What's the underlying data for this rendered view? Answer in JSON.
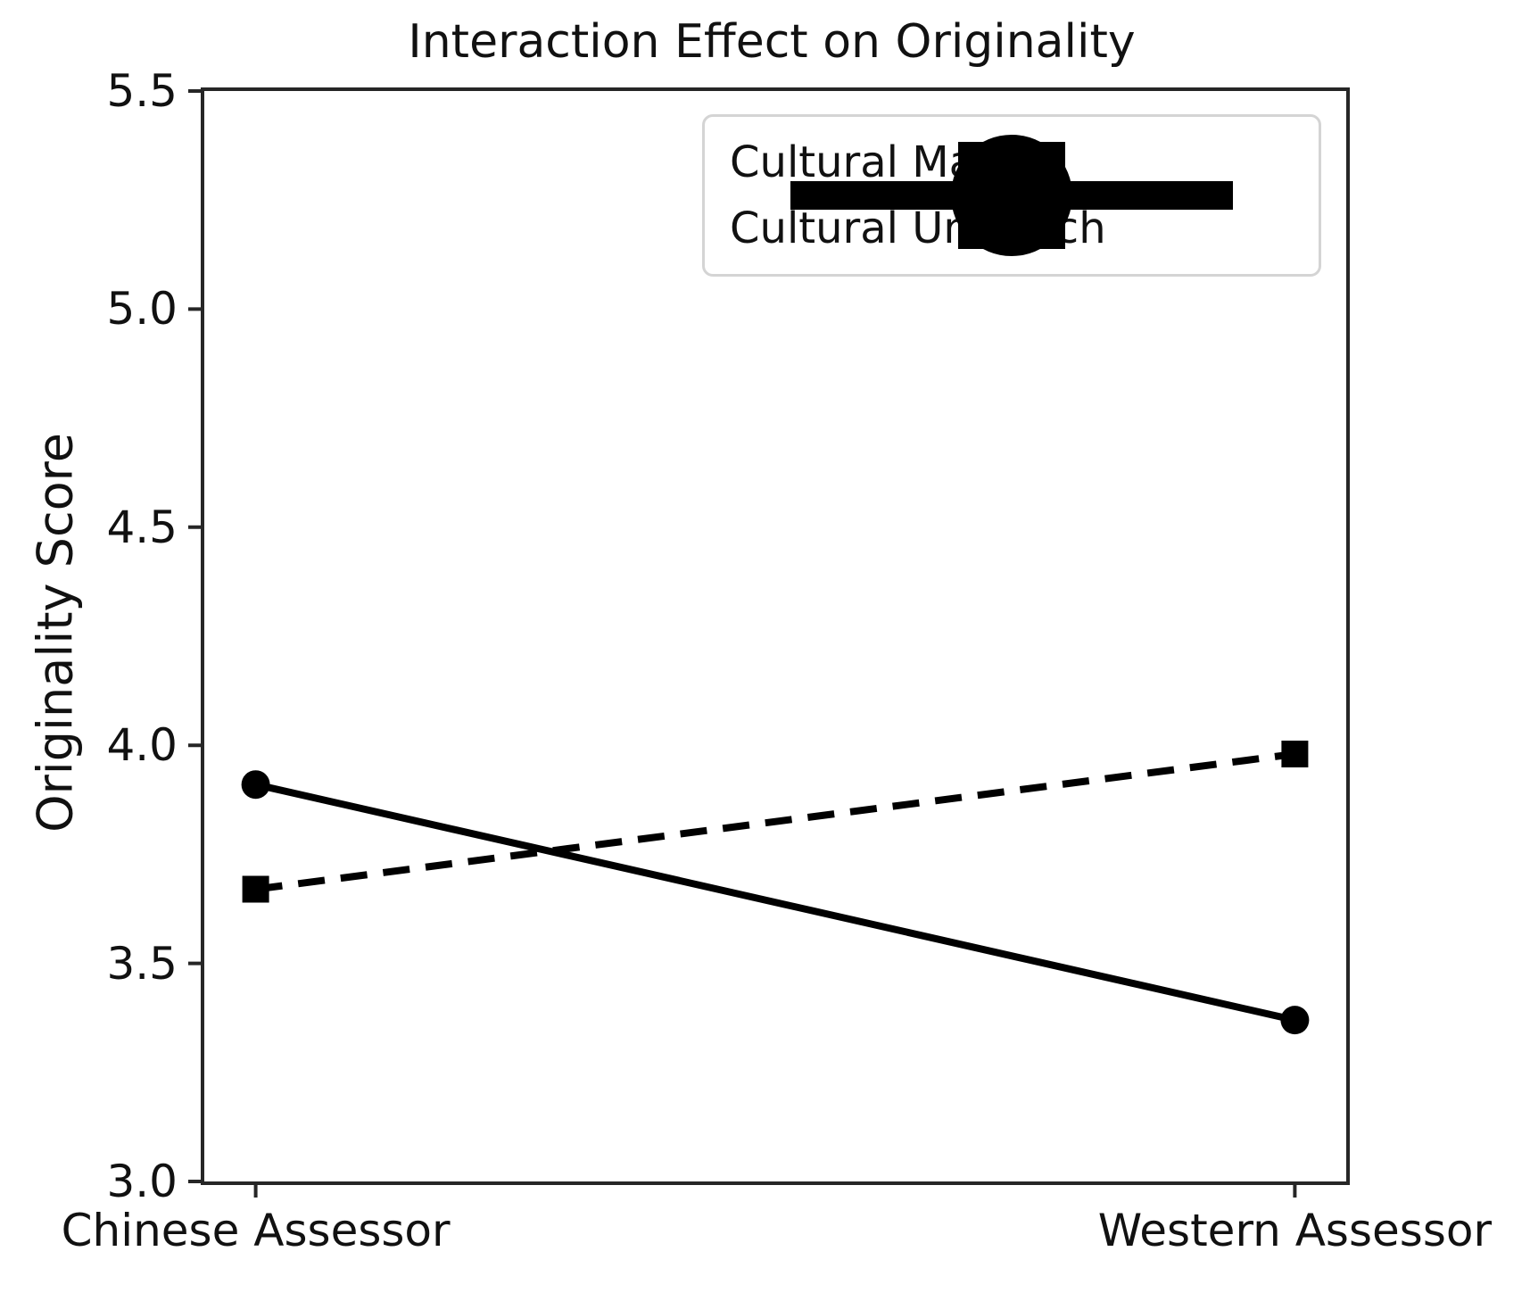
{
  "chart_data": {
    "type": "line",
    "title": "Interaction Effect on Originality",
    "xlabel": "",
    "ylabel": "Originality Score",
    "categories": [
      "Chinese Assessor",
      "Western Assessor"
    ],
    "series": [
      {
        "name": "Cultural Match",
        "values": [
          3.91,
          3.37
        ],
        "line_style": "solid",
        "marker": "circle"
      },
      {
        "name": "Cultural Unmatch",
        "values": [
          3.67,
          3.98
        ],
        "line_style": "dashed",
        "marker": "square"
      }
    ],
    "ylim": [
      3.0,
      5.5
    ],
    "yticks": [
      5.5,
      5.0,
      4.5,
      4.0,
      3.5,
      3.0
    ],
    "ytick_labels": [
      "5.5",
      "5.0",
      "4.5",
      "4.0",
      "3.5",
      "3.0"
    ],
    "grid": false,
    "legend_position": "upper right",
    "colors": {
      "series": "#000000",
      "spine": "#262626",
      "text": "#111111",
      "legend_border": "#d4d4d4",
      "background": "#ffffff"
    }
  }
}
